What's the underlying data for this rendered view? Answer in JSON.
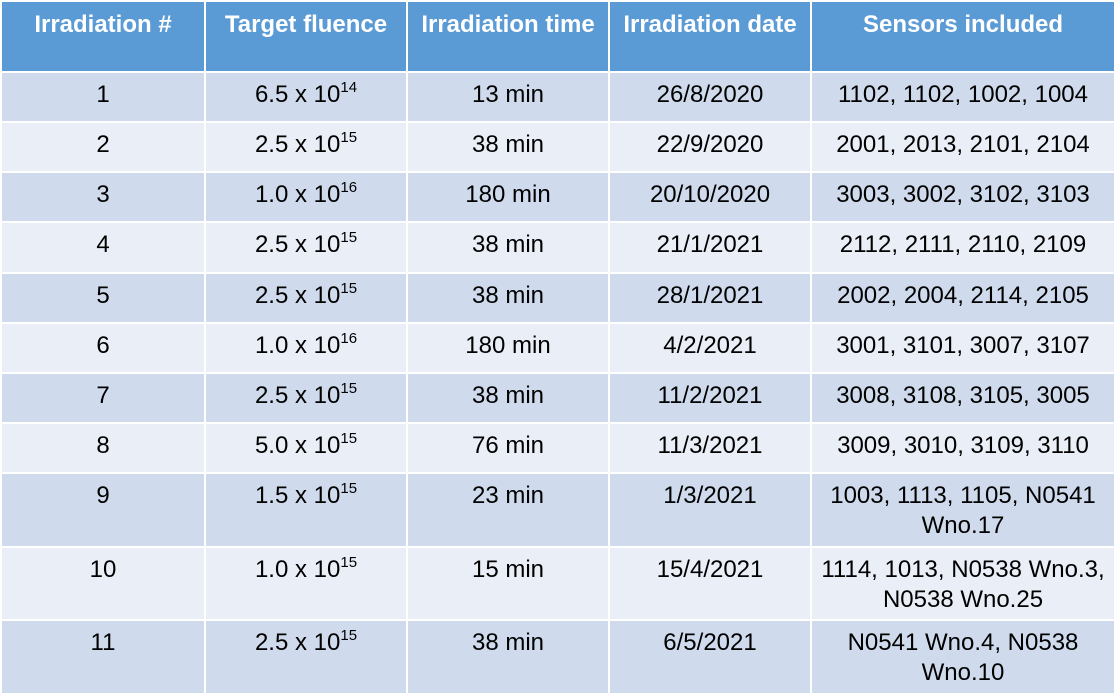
{
  "table": {
    "headers": [
      "Irradiation #",
      "Target fluence",
      "Irradiation time",
      "Irradiation date",
      "Sensors included"
    ],
    "rows": [
      {
        "num": "1",
        "fluence_base": "6.5 x 10",
        "fluence_exp": "14",
        "time": "13 min",
        "date": "26/8/2020",
        "sensors": "1102, 1102, 1002, 1004"
      },
      {
        "num": "2",
        "fluence_base": "2.5 x 10",
        "fluence_exp": "15",
        "time": "38 min",
        "date": "22/9/2020",
        "sensors": "2001, 2013, 2101, 2104"
      },
      {
        "num": "3",
        "fluence_base": "1.0 x 10",
        "fluence_exp": "16",
        "time": "180 min",
        "date": "20/10/2020",
        "sensors": "3003, 3002, 3102, 3103"
      },
      {
        "num": "4",
        "fluence_base": "2.5 x 10",
        "fluence_exp": "15",
        "time": "38 min",
        "date": "21/1/2021",
        "sensors": "2112, 2111, 2110, 2109"
      },
      {
        "num": "5",
        "fluence_base": "2.5 x 10",
        "fluence_exp": "15",
        "time": "38 min",
        "date": "28/1/2021",
        "sensors": "2002, 2004, 2114, 2105"
      },
      {
        "num": "6",
        "fluence_base": "1.0 x 10",
        "fluence_exp": "16",
        "time": "180 min",
        "date": "4/2/2021",
        "sensors": "3001, 3101, 3007, 3107"
      },
      {
        "num": "7",
        "fluence_base": "2.5 x 10",
        "fluence_exp": "15",
        "time": "38 min",
        "date": "11/2/2021",
        "sensors": "3008, 3108, 3105, 3005"
      },
      {
        "num": "8",
        "fluence_base": "5.0 x 10",
        "fluence_exp": "15",
        "time": "76 min",
        "date": "11/3/2021",
        "sensors": "3009, 3010, 3109, 3110"
      },
      {
        "num": "9",
        "fluence_base": "1.5 x 10",
        "fluence_exp": "15",
        "time": "23 min",
        "date": "1/3/2021",
        "sensors": "1003, 1113, 1105, N0541 Wno.17"
      },
      {
        "num": "10",
        "fluence_base": "1.0 x 10",
        "fluence_exp": "15",
        "time": "15 min",
        "date": "15/4/2021",
        "sensors": "1114, 1013, N0538 Wno.3, N0538 Wno.25"
      },
      {
        "num": "11",
        "fluence_base": "2.5 x 10",
        "fluence_exp": "15",
        "time": "38 min",
        "date": "6/5/2021",
        "sensors": "N0541 Wno.4, N0538 Wno.10"
      }
    ]
  },
  "colors": {
    "header_bg": "#5b9bd5",
    "row_odd_bg": "#cfdbec",
    "row_even_bg": "#e9eef7"
  }
}
